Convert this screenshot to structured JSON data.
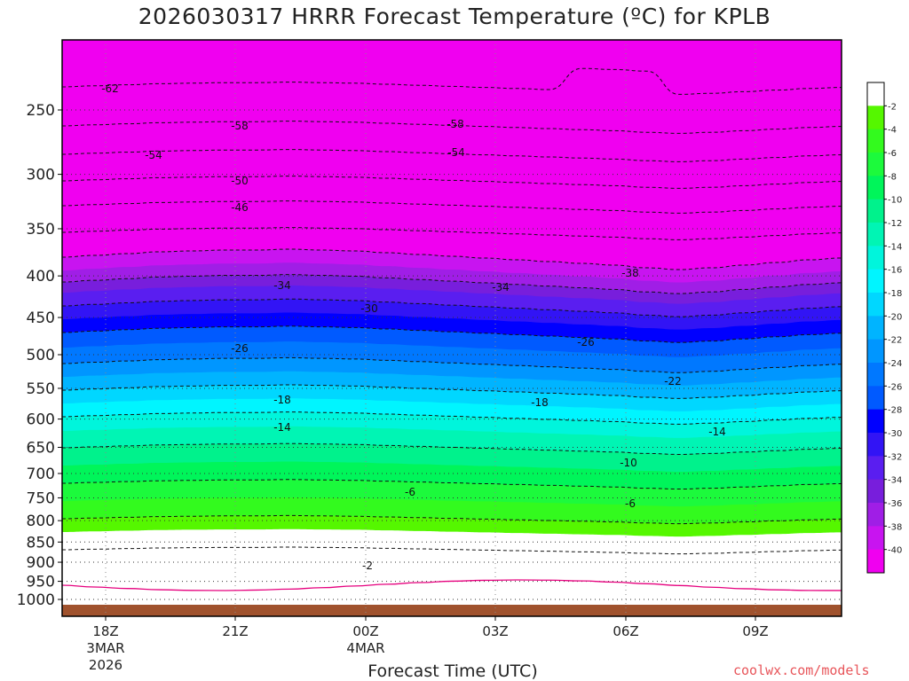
{
  "chart_data": {
    "type": "heatmap",
    "title": "2026030317 HRRR Forecast Temperature (ºC) for KPLB",
    "xlabel": "Forecast Time (UTC)",
    "ylabel": "",
    "y_scale": "log (pressure)",
    "y_ticks": [
      250,
      300,
      350,
      400,
      450,
      500,
      550,
      600,
      650,
      700,
      750,
      800,
      850,
      900,
      950,
      1000
    ],
    "x_ticks": [
      {
        "label": "18Z",
        "sub1": "3MAR",
        "sub2": "2026"
      },
      {
        "label": "21Z",
        "sub1": "",
        "sub2": ""
      },
      {
        "label": "00Z",
        "sub1": "4MAR",
        "sub2": ""
      },
      {
        "label": "03Z",
        "sub1": "",
        "sub2": ""
      },
      {
        "label": "06Z",
        "sub1": "",
        "sub2": ""
      },
      {
        "label": "09Z",
        "sub1": "",
        "sub2": ""
      }
    ],
    "grid": true,
    "legend": "right colorbar",
    "colorbar_ticks": [
      -2,
      -4,
      -6,
      -8,
      -10,
      -12,
      -14,
      -16,
      -18,
      -20,
      -22,
      -24,
      -26,
      -28,
      -30,
      -32,
      -34,
      -36,
      -38,
      -40
    ],
    "colorbar_colors": [
      "#ffffff",
      "#55f700",
      "#33fa1e",
      "#1cfa3c",
      "#00f55a",
      "#00f28c",
      "#00f5b4",
      "#00f5dc",
      "#00f5ff",
      "#00d7ff",
      "#00b4ff",
      "#0096ff",
      "#0078ff",
      "#005aff",
      "#0000ff",
      "#3214f5",
      "#5a1ef0",
      "#781edc",
      "#a01ee6",
      "#c814f0",
      "#f000f0"
    ],
    "contour_labels": [
      -62,
      -58,
      -58,
      -54,
      -54,
      -50,
      -46,
      -38,
      -34,
      -34,
      -30,
      -26,
      -26,
      -22,
      -18,
      -18,
      -14,
      -14,
      -10,
      -6,
      -6,
      -2
    ],
    "freezing_contour_color": "#e6007e",
    "ground_color": "#a0522d"
  },
  "credit": "coolwx.com/models"
}
